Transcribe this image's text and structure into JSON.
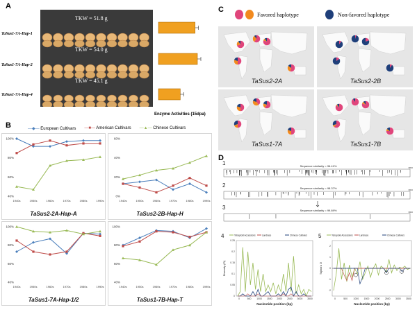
{
  "panel_labels": {
    "a": "A",
    "b": "B",
    "c": "C",
    "d": "D"
  },
  "panel_a": {
    "rows": [
      {
        "label": "TaSus1-7A-Hap-1",
        "tkw": "TKW = 51.8 g",
        "activity": 0.94
      },
      {
        "label": "TaSus1-7A-Hap-2",
        "tkw": "TKW = 54.0 g",
        "activity": 1.0
      },
      {
        "label": "TaSus1-7A-Hap-4",
        "tkw": "TKW = 45.1 g",
        "activity": 0.56
      }
    ],
    "bar_caption": "Enzyme Activities (15dpa)",
    "colors": {
      "bar": "#f0a020",
      "photo_bg": "#3a3a3a",
      "seed": "#e8b878"
    }
  },
  "panel_b": {
    "legend": [
      {
        "name": "European Cultivars",
        "color": "#4a7ebb"
      },
      {
        "name": "American Cultivars",
        "color": "#be4b48"
      },
      {
        "name": "Chinese Cultivars",
        "color": "#98b954"
      }
    ],
    "chart_data": [
      {
        "type": "line",
        "title": "TaSus2-2A-Hap-A",
        "categories": [
          "1940s",
          "1950s",
          "1960s",
          "1970s",
          "1980s",
          "1990s"
        ],
        "yticks": [
          "100%",
          "80%",
          "60%",
          "40%"
        ],
        "ylim": [
          40,
          100
        ],
        "series": [
          {
            "name": "European Cultivars",
            "values": [
              100,
              92,
              92,
              97,
              98,
              98
            ]
          },
          {
            "name": "American Cultivars",
            "values": [
              85,
              94,
              98,
              93,
              95,
              95
            ]
          },
          {
            "name": "Chinese Cultivars",
            "values": [
              50,
              47,
              72,
              77,
              78,
              81
            ]
          }
        ]
      },
      {
        "type": "line",
        "title": "TaSus2-2B-Hap-H",
        "categories": [
          "1940s",
          "1950s",
          "1960s",
          "1970s",
          "1980s",
          "1990s"
        ],
        "yticks": [
          "60%",
          "40%",
          "20%",
          "0%"
        ],
        "ylim": [
          0,
          60
        ],
        "series": [
          {
            "name": "European Cultivars",
            "values": [
              13,
              15,
              17,
              7,
              13,
              4
            ]
          },
          {
            "name": "American Cultivars",
            "values": [
              13,
              9,
              4,
              11,
              19,
              11
            ]
          },
          {
            "name": "Chinese Cultivars",
            "values": [
              18,
              22,
              27,
              29,
              35,
              42
            ]
          }
        ]
      },
      {
        "type": "line",
        "title": "TaSus1-7A-Hap-1/2",
        "categories": [
          "1940s",
          "1950s",
          "1960s",
          "1970s",
          "1980s",
          "1990s"
        ],
        "yticks": [
          "100%",
          "80%",
          "60%",
          "40%"
        ],
        "ylim": [
          40,
          100
        ],
        "series": [
          {
            "name": "European Cultivars",
            "values": [
              73,
              83,
              87,
              71,
              93,
              92
            ]
          },
          {
            "name": "American Cultivars",
            "values": [
              85,
              73,
              70,
              73,
              93,
              90
            ]
          },
          {
            "name": "Chinese Cultivars",
            "values": [
              100,
              95,
              94,
              96,
              92,
              95
            ]
          }
        ]
      },
      {
        "type": "line",
        "title": "TaSus1-7B-Hap-T",
        "categories": [
          "1940s",
          "1950s",
          "1960s",
          "1970s",
          "1980s",
          "1990s"
        ],
        "yticks": [
          "100%",
          "80%",
          "60%",
          "40%"
        ],
        "ylim": [
          40,
          100
        ],
        "series": [
          {
            "name": "European Cultivars",
            "values": [
              80,
              88,
              96,
              95,
              88,
              98
            ]
          },
          {
            "name": "American Cultivars",
            "values": [
              79,
              84,
              95,
              94,
              89,
              94
            ]
          },
          {
            "name": "Chinese Cultivars",
            "values": [
              66,
              64,
              59,
              75,
              80,
              94
            ]
          }
        ]
      }
    ]
  },
  "panel_c": {
    "legend_favored": "Favored haplotype",
    "legend_nonfavored": "Non-favored haplotype",
    "colors": {
      "fav1": "#e0457b",
      "fav2": "#f28a1e",
      "nonfav": "#1f3f7a"
    },
    "maps": [
      {
        "label": "TaSus2-2A",
        "pies": [
          [
            0.7,
            0.2
          ],
          [
            0.6,
            0.3
          ],
          [
            0.8,
            0.1
          ],
          [
            0.55,
            0.3
          ],
          [
            0.5,
            0.3
          ]
        ]
      },
      {
        "label": "TaSus2-2B",
        "pies": [
          [
            0.1,
            0.0
          ],
          [
            0.05,
            0.0
          ],
          [
            0.2,
            0.0
          ],
          [
            0.1,
            0.0
          ],
          [
            0.15,
            0.0
          ]
        ]
      },
      {
        "label": "TaSus1-7A",
        "pies": [
          [
            0.5,
            0.3
          ],
          [
            0.4,
            0.4
          ],
          [
            0.6,
            0.2
          ],
          [
            0.5,
            0.3
          ],
          [
            0.5,
            0.2
          ]
        ]
      },
      {
        "label": "TaSus1-7B",
        "pies": [
          [
            0.85,
            0.05
          ],
          [
            0.9,
            0.0
          ],
          [
            0.8,
            0.1
          ],
          [
            0.75,
            0.1
          ],
          [
            0.6,
            0.1
          ]
        ]
      }
    ]
  },
  "panel_d": {
    "tracks": [
      {
        "num": "1",
        "similarity": "Sequence similarity = 96.41%",
        "end": "3800"
      },
      {
        "num": "2",
        "similarity": "Sequence similarity = 98.37%",
        "end": "3800"
      },
      {
        "num": "3",
        "similarity": "Sequence similarity = 99.89%",
        "end": "3800"
      }
    ],
    "legend": [
      {
        "name": "Tetraploid Accessions",
        "color": "#98b954"
      },
      {
        "name": "Landrace",
        "color": "#be4b48"
      },
      {
        "name": "Chinese Cultivars",
        "color": "#1f3f7a"
      }
    ],
    "sub4": {
      "num": "4",
      "ylabel": "Diversity (Pi)",
      "xlabel": "Nucleotide position (bp)",
      "xticks": [
        "0",
        "500",
        "1000",
        "1500",
        "2000",
        "2500",
        "3000",
        "3500"
      ],
      "yticks": [
        "0.25",
        "0.2",
        "0.15",
        "0.1",
        "0.05",
        "0"
      ]
    },
    "sub5": {
      "num": "5",
      "ylabel": "Tajima's D",
      "xlabel": "Nucleotide position (bp)",
      "xticks": [
        "0",
        "500",
        "1000",
        "1500",
        "2000",
        "2500",
        "3000",
        "3500"
      ],
      "yticks": [
        "2",
        "1",
        "0",
        "-1",
        "-2"
      ]
    }
  }
}
